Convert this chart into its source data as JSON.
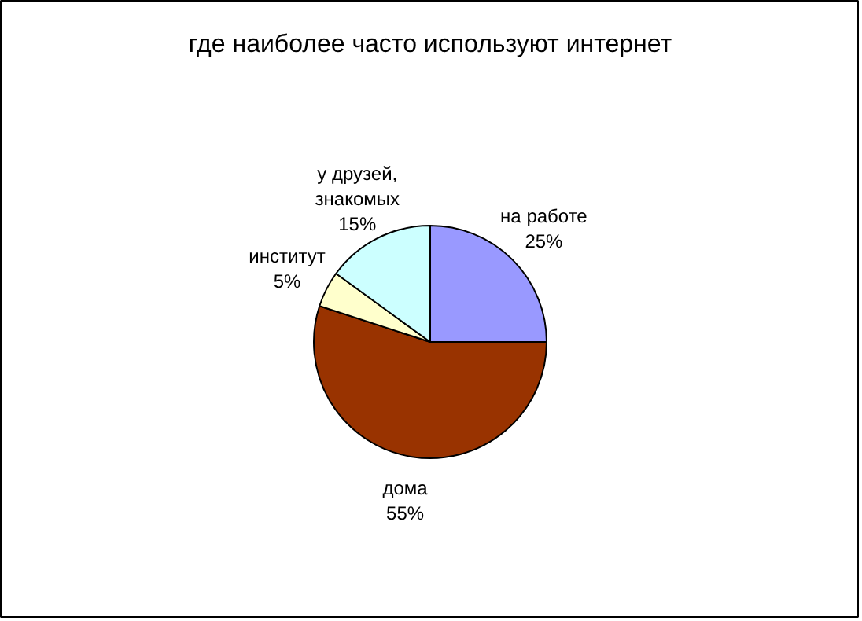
{
  "chart_data": {
    "type": "pie",
    "title": "где наиболее часто используют интернет",
    "categories": [
      "на работе",
      "дома",
      "институт",
      "у друзей, знакомых"
    ],
    "values": [
      25,
      55,
      5,
      15
    ],
    "colors": [
      "#9999ff",
      "#993300",
      "#ffffcc",
      "#ccffff"
    ],
    "value_labels": [
      "25%",
      "55%",
      "5%",
      "15%"
    ]
  }
}
